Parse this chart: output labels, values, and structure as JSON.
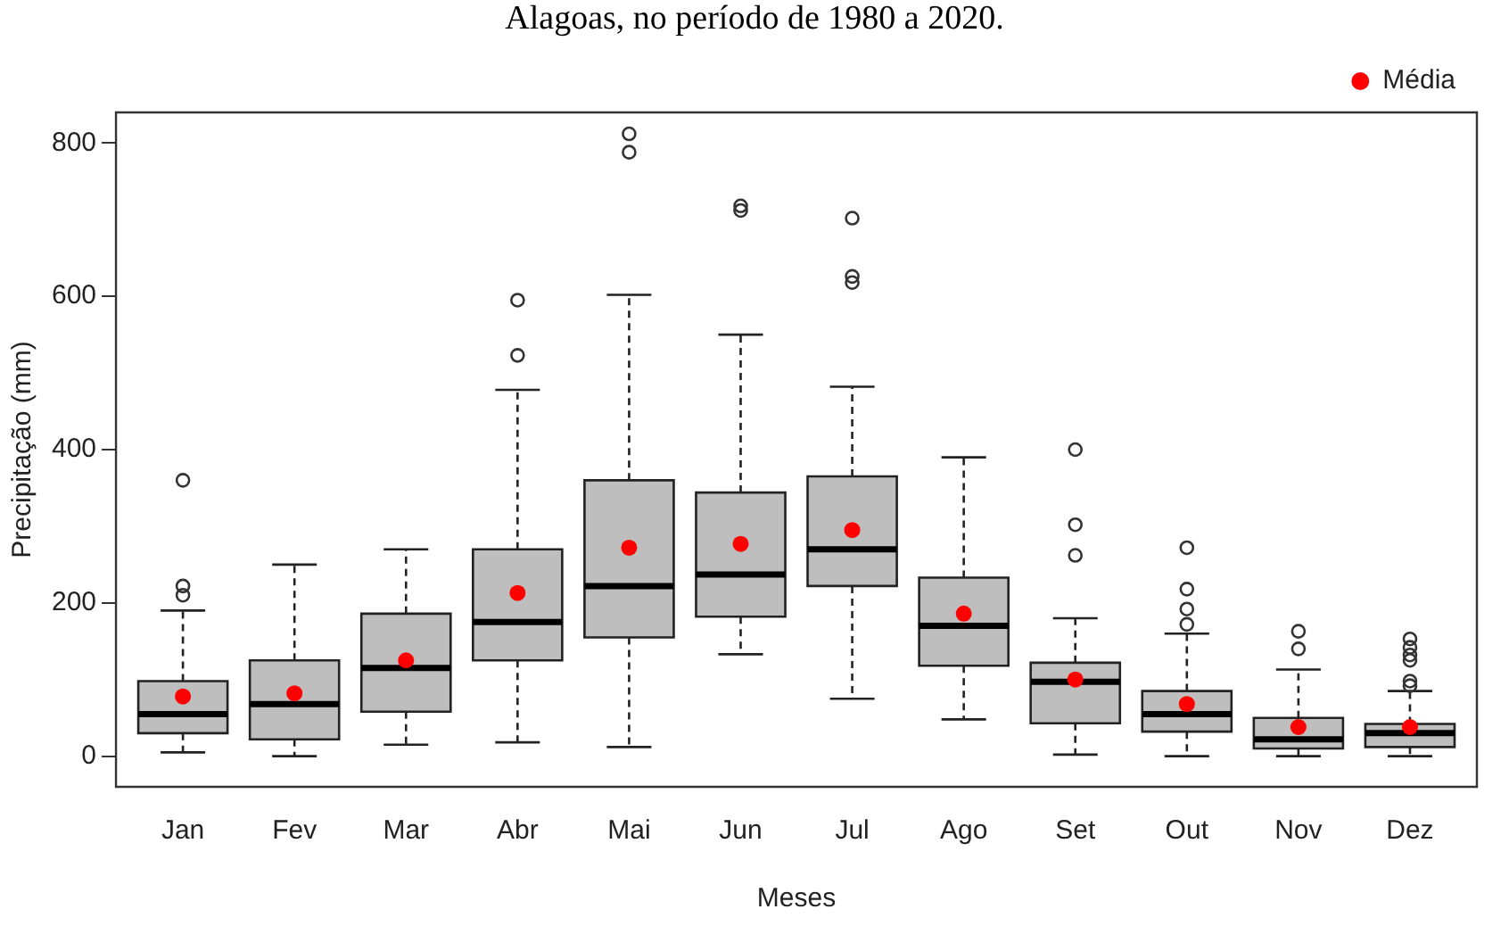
{
  "chart_data": {
    "type": "box",
    "title": "Alagoas, no período de 1980 a 2020.",
    "xlabel": "Meses",
    "ylabel": "Precipitação (mm)",
    "categories": [
      "Jan",
      "Fev",
      "Mar",
      "Abr",
      "Mai",
      "Jun",
      "Jul",
      "Ago",
      "Set",
      "Out",
      "Nov",
      "Dez"
    ],
    "ylim": [
      -40,
      840
    ],
    "yticks": [
      0,
      200,
      400,
      600,
      800
    ],
    "grid": false,
    "legend": "top right",
    "series": [
      {
        "type": "box",
        "color": "#bebebe",
        "boxes": [
          {
            "low": 5,
            "q1": 30,
            "median": 55,
            "q3": 98,
            "high": 190,
            "outliers": [
              210,
              222,
              360
            ]
          },
          {
            "low": 0,
            "q1": 22,
            "median": 68,
            "q3": 125,
            "high": 250
          },
          {
            "low": 15,
            "q1": 58,
            "median": 115,
            "q3": 186,
            "high": 270
          },
          {
            "low": 18,
            "q1": 125,
            "median": 175,
            "q3": 270,
            "high": 478,
            "outliers": [
              523,
              595
            ]
          },
          {
            "low": 12,
            "q1": 155,
            "median": 222,
            "q3": 360,
            "high": 602,
            "outliers": [
              788,
              812
            ]
          },
          {
            "low": 133,
            "q1": 182,
            "median": 237,
            "q3": 344,
            "high": 550,
            "outliers": [
              712,
              718
            ]
          },
          {
            "low": 75,
            "q1": 222,
            "median": 270,
            "q3": 365,
            "high": 482,
            "outliers": [
              618,
              626,
              702
            ]
          },
          {
            "low": 48,
            "q1": 118,
            "median": 170,
            "q3": 233,
            "high": 390
          },
          {
            "low": 2,
            "q1": 43,
            "median": 97,
            "q3": 122,
            "high": 180,
            "outliers": [
              262,
              302,
              400
            ]
          },
          {
            "low": 0,
            "q1": 32,
            "median": 55,
            "q3": 85,
            "high": 160,
            "outliers": [
              172,
              192,
              218,
              272
            ]
          },
          {
            "low": 0,
            "q1": 10,
            "median": 22,
            "q3": 50,
            "high": 113,
            "outliers": [
              140,
              163
            ]
          },
          {
            "low": 0,
            "q1": 12,
            "median": 30,
            "q3": 42,
            "high": 85,
            "outliers": [
              92,
              98,
              125,
              132,
              142,
              153
            ]
          }
        ]
      },
      {
        "type": "scatter",
        "name": "Média",
        "color": "#ff0000",
        "marker": "circle",
        "x": [
          "Jan",
          "Fev",
          "Mar",
          "Abr",
          "Mai",
          "Jun",
          "Jul",
          "Ago",
          "Set",
          "Out",
          "Nov",
          "Dez"
        ],
        "values": [
          78,
          82,
          125,
          213,
          272,
          277,
          295,
          186,
          100,
          68,
          38,
          38
        ]
      }
    ]
  }
}
